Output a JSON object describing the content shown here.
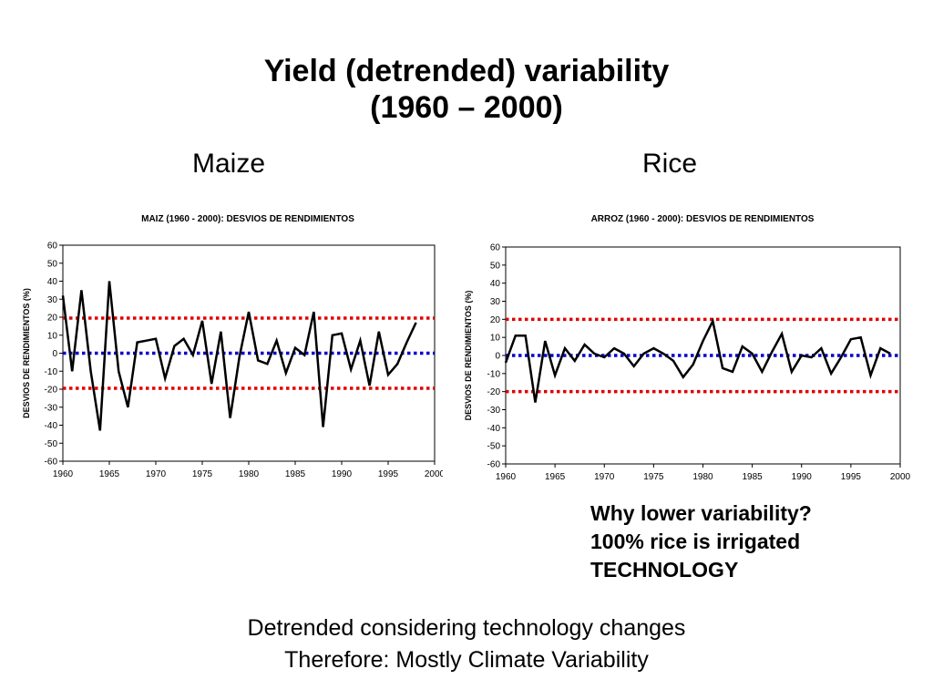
{
  "slide": {
    "title_line1": "Yield (detrended) variability",
    "title_line2": "(1960 – 2000)",
    "maize_label": "Maize",
    "rice_label": "Rice",
    "note_lines": [
      "Why lower variability?",
      "100% rice is irrigated",
      "TECHNOLOGY"
    ],
    "footer_lines": [
      "Detrended considering technology changes",
      "Therefore: Mostly Climate Variability"
    ]
  },
  "chart_data": [
    {
      "id": "maize",
      "type": "line",
      "title": "MAIZ (1960 - 2000):  DESVIOS  DE  RENDIMIENTOS",
      "xlabel": "",
      "ylabel": "DESVIOS  DE  RENDIMIENTOS (%)",
      "xlim": [
        1960,
        2000
      ],
      "ylim": [
        -60,
        60
      ],
      "x_ticks": [
        1960,
        1965,
        1970,
        1975,
        1980,
        1985,
        1990,
        1995,
        2000
      ],
      "y_ticks": [
        60,
        50,
        40,
        30,
        20,
        10,
        0,
        -10,
        -20,
        -30,
        -40,
        -50,
        -60
      ],
      "grid": false,
      "series": [
        {
          "color": "#000000",
          "x": [
            1960,
            1961,
            1962,
            1963,
            1964,
            1965,
            1966,
            1967,
            1968,
            1969,
            1970,
            1971,
            1972,
            1973,
            1974,
            1975,
            1976,
            1977,
            1978,
            1979,
            1980,
            1981,
            1982,
            1983,
            1984,
            1985,
            1986,
            1987,
            1988,
            1989,
            1990,
            1991,
            1992,
            1993,
            1994,
            1995,
            1996,
            1997,
            1998
          ],
          "y": [
            32,
            -10,
            35,
            -10,
            -43,
            40,
            -10,
            -30,
            6,
            7,
            8,
            -14,
            4,
            8,
            -1,
            18,
            -17,
            12,
            -36,
            -2,
            23,
            -4,
            -6,
            7,
            -11,
            3,
            -1,
            23,
            -41,
            10,
            11,
            -9,
            7,
            -18,
            12,
            -12,
            -6,
            6,
            17
          ]
        }
      ],
      "reference_lines": [
        {
          "y": 19.5,
          "color": "#e00000",
          "style": "dotted"
        },
        {
          "y": 0,
          "color": "#0000cc",
          "style": "dotted"
        },
        {
          "y": -19.5,
          "color": "#e00000",
          "style": "dotted"
        }
      ]
    },
    {
      "id": "rice",
      "type": "line",
      "title": "ARROZ (1960 - 2000):  DESVIOS  DE  RENDIMIENTOS",
      "xlabel": "",
      "ylabel": "DESVIOS  DE  RENDIMIENTOS (%)",
      "xlim": [
        1960,
        2000
      ],
      "ylim": [
        -60,
        60
      ],
      "x_ticks": [
        1960,
        1965,
        1970,
        1975,
        1980,
        1985,
        1990,
        1995,
        2000
      ],
      "y_ticks": [
        60,
        50,
        40,
        30,
        20,
        10,
        0,
        -10,
        -20,
        -30,
        -40,
        -50,
        -60
      ],
      "grid": false,
      "series": [
        {
          "color": "#000000",
          "x": [
            1960,
            1961,
            1962,
            1963,
            1964,
            1965,
            1966,
            1967,
            1968,
            1969,
            1970,
            1971,
            1972,
            1973,
            1974,
            1975,
            1976,
            1977,
            1978,
            1979,
            1980,
            1981,
            1982,
            1983,
            1984,
            1985,
            1986,
            1987,
            1988,
            1989,
            1990,
            1991,
            1992,
            1993,
            1994,
            1995,
            1996,
            1997,
            1998,
            1999
          ],
          "y": [
            -4,
            11,
            11,
            -26,
            8,
            -11,
            4,
            -3,
            6,
            1,
            -1,
            4,
            1,
            -6,
            1,
            4,
            1,
            -3,
            -12,
            -5,
            8,
            19,
            -7,
            -9,
            5,
            1,
            -9,
            2,
            12,
            -9,
            0,
            -1,
            4,
            -10,
            -1,
            9,
            10,
            -11,
            4,
            1
          ]
        }
      ],
      "reference_lines": [
        {
          "y": 20,
          "color": "#e00000",
          "style": "dotted"
        },
        {
          "y": 0,
          "color": "#0000cc",
          "style": "dotted"
        },
        {
          "y": -20,
          "color": "#e00000",
          "style": "dotted"
        }
      ]
    }
  ]
}
